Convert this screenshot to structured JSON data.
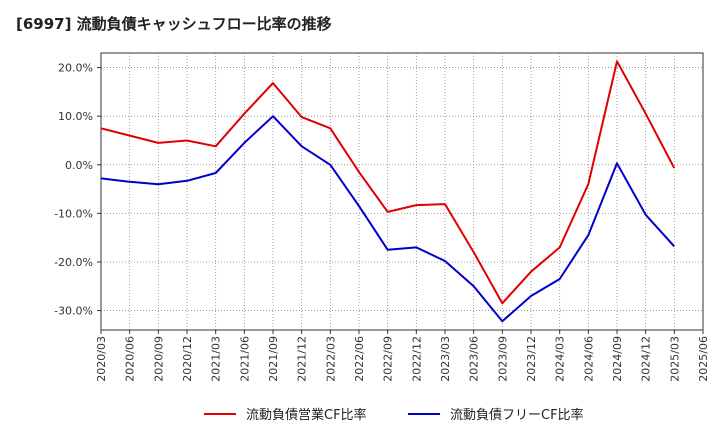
{
  "title": "[6997]  流動負債キャッシュフロー比率の推移",
  "chart_data": {
    "type": "line",
    "title": "[6997]  流動負債キャッシュフロー比率の推移",
    "xlabel": "",
    "ylabel": "",
    "x": [
      "2020/03",
      "2020/06",
      "2020/09",
      "2020/12",
      "2021/03",
      "2021/06",
      "2021/09",
      "2021/12",
      "2022/03",
      "2022/06",
      "2022/09",
      "2022/12",
      "2023/03",
      "2023/06",
      "2023/09",
      "2023/12",
      "2024/03",
      "2024/06",
      "2024/09",
      "2024/12",
      "2025/03",
      "2025/06"
    ],
    "ylim": [
      -34,
      23
    ],
    "yticks": [
      20,
      10,
      0,
      -10,
      -20,
      -30
    ],
    "ytick_labels": [
      "20.0%",
      "10.0%",
      "0.0%",
      "-10.0%",
      "-20.0%",
      "-30.0%"
    ],
    "grid": true,
    "legend_position": "bottom",
    "series": [
      {
        "name": "流動負債営業CF比率",
        "color": "#e00000",
        "values": [
          7.5,
          6.0,
          4.5,
          5.0,
          3.8,
          10.5,
          16.8,
          9.8,
          7.5,
          -1.5,
          -9.7,
          -8.3,
          -8.1,
          -18.0,
          -28.5,
          -22.0,
          -17.0,
          -4.0,
          21.3,
          10.5,
          -0.7,
          null
        ]
      },
      {
        "name": "流動負債フリーCF比率",
        "color": "#0000cc",
        "values": [
          -2.8,
          -3.5,
          -4.0,
          -3.3,
          -1.7,
          4.5,
          10.0,
          3.8,
          0.0,
          -8.5,
          -17.5,
          -17.0,
          -19.8,
          -25.0,
          -32.2,
          -27.0,
          -23.5,
          -14.5,
          0.3,
          -10.3,
          -16.8,
          null
        ]
      }
    ]
  }
}
